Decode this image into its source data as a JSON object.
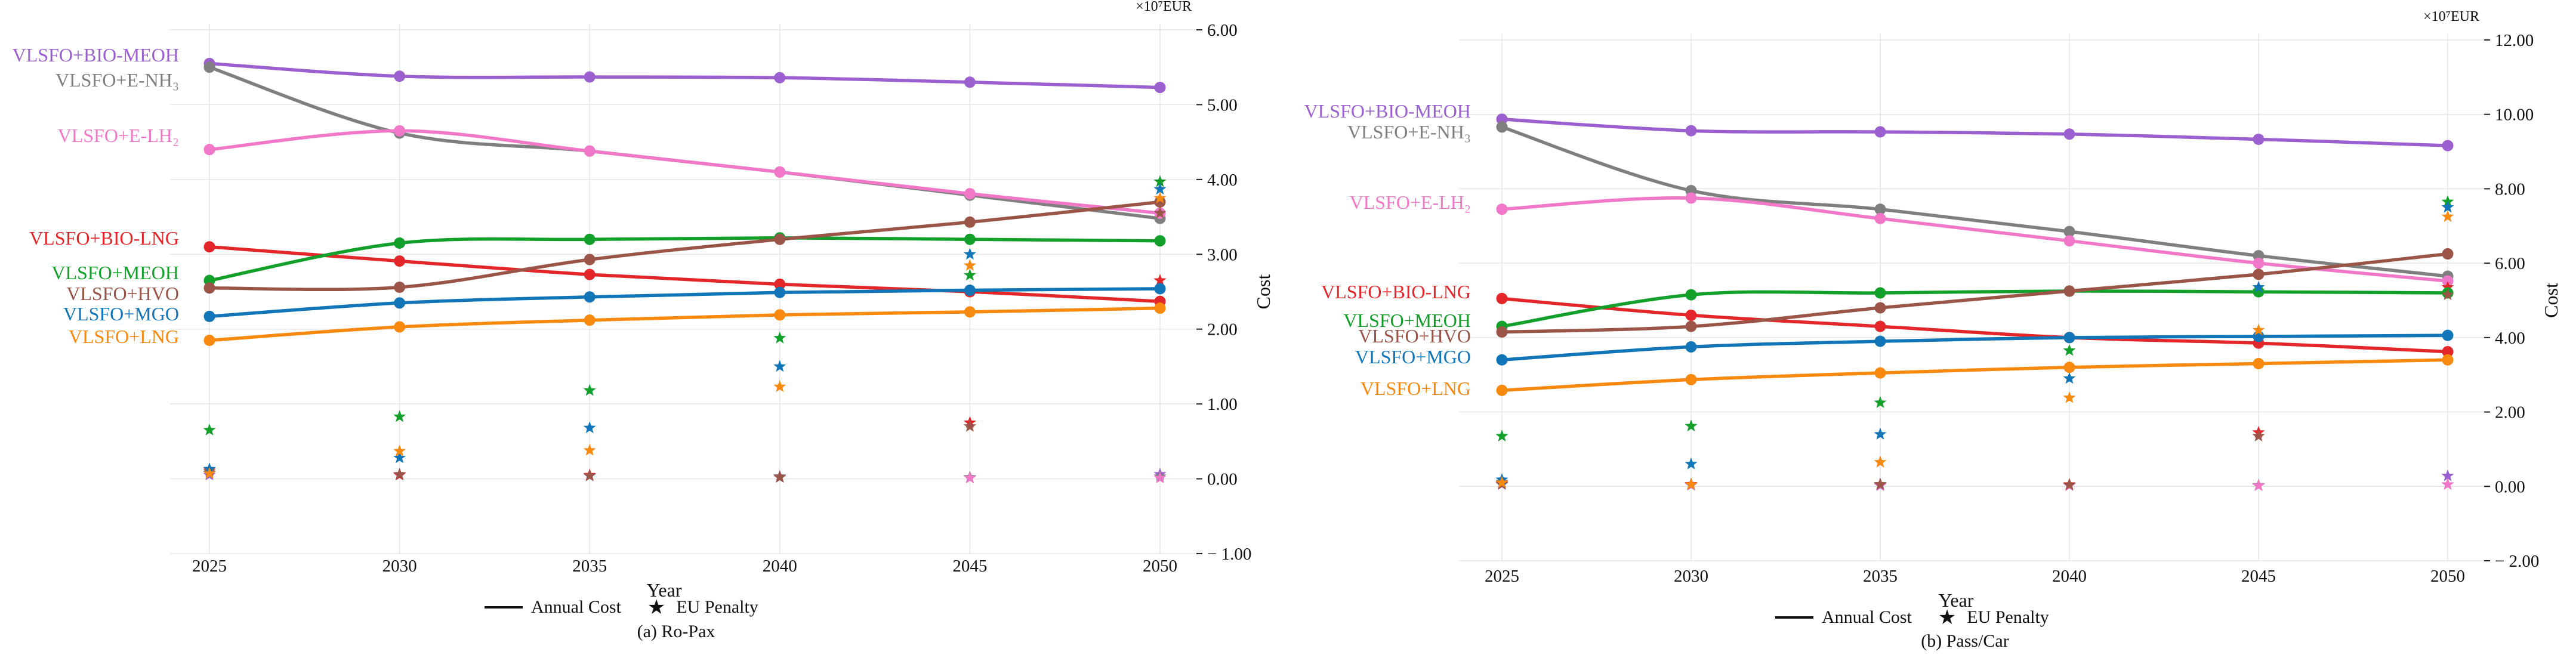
{
  "legend": {
    "annual_cost": "Annual Cost",
    "eu_penalty": "EU Penalty"
  },
  "colors": {
    "VLSFO+BIO-MEOH": "#9b5fcf",
    "VLSFO+E-NH3": "#7f7f7f",
    "VLSFO+E-LH2": "#f178c8",
    "VLSFO+BIO-LNG": "#e3262a",
    "VLSFO+MEOH": "#12a02a",
    "VLSFO+HVO": "#9a5548",
    "VLSFO+MGO": "#1175b8",
    "VLSFO+LNG": "#f7890f"
  },
  "chart_data": [
    {
      "type": "line",
      "caption": "(a) Ro-Pax",
      "xlabel": "Year",
      "ylabel": "Cost",
      "unit_label": "×10⁷EUR",
      "x": [
        2025,
        2030,
        2035,
        2040,
        2045,
        2050
      ],
      "x_tick_labels": [
        "2025",
        "2030",
        "2035",
        "2040",
        "2045",
        "2050"
      ],
      "ylim": [
        -1.0,
        6.0
      ],
      "y_ticks": [
        -1.0,
        0.0,
        1.0,
        2.0,
        3.0,
        4.0,
        5.0,
        6.0
      ],
      "y_tick_labels": [
        "− 1.00",
        "0.00",
        "1.00",
        "2.00",
        "3.00",
        "4.00",
        "5.00",
        "6.00"
      ],
      "grid": true,
      "series": [
        {
          "name": "VLSFO+BIO-MEOH",
          "label": "VLSFO+BIO-MEOH",
          "annual_cost": [
            5.55,
            5.38,
            5.37,
            5.36,
            5.3,
            5.23
          ],
          "eu_penalty": [
            0.05,
            0.05,
            0.04,
            0.03,
            0.02,
            0.06
          ]
        },
        {
          "name": "VLSFO+E-NH3",
          "label": "VLSFO+E-NH₃",
          "annual_cost": [
            5.5,
            4.62,
            4.38,
            4.1,
            3.79,
            3.48
          ],
          "eu_penalty": [
            0.08,
            0.05,
            0.04,
            0.03,
            0.02,
            0.03
          ]
        },
        {
          "name": "VLSFO+E-LH2",
          "label": "VLSFO+E-LH₂",
          "annual_cost": [
            4.4,
            4.65,
            4.38,
            4.1,
            3.81,
            3.55
          ],
          "eu_penalty": [
            0.1,
            0.06,
            0.04,
            0.02,
            0.01,
            0.01
          ]
        },
        {
          "name": "VLSFO+BIO-LNG",
          "label": "VLSFO+BIO-LNG",
          "annual_cost": [
            3.1,
            2.91,
            2.73,
            2.6,
            2.5,
            2.37
          ],
          "eu_penalty": [
            0.12,
            0.05,
            0.05,
            0.02,
            0.75,
            2.65
          ]
        },
        {
          "name": "VLSFO+MEOH",
          "label": "VLSFO+MEOH",
          "annual_cost": [
            2.65,
            3.15,
            3.2,
            3.22,
            3.2,
            3.18
          ],
          "eu_penalty": [
            0.65,
            0.83,
            1.18,
            1.88,
            2.72,
            3.97
          ]
        },
        {
          "name": "VLSFO+HVO",
          "label": "VLSFO+HVO",
          "annual_cost": [
            2.55,
            2.56,
            2.93,
            3.2,
            3.43,
            3.7
          ],
          "eu_penalty": [
            0.1,
            0.06,
            0.04,
            0.02,
            0.7,
            3.55
          ]
        },
        {
          "name": "VLSFO+MGO",
          "label": "VLSFO+MGO",
          "annual_cost": [
            2.17,
            2.35,
            2.43,
            2.49,
            2.52,
            2.54
          ],
          "eu_penalty": [
            0.13,
            0.28,
            0.68,
            1.5,
            3.0,
            3.87
          ]
        },
        {
          "name": "VLSFO+LNG",
          "label": "VLSFO+LNG",
          "annual_cost": [
            1.85,
            2.03,
            2.12,
            2.19,
            2.23,
            2.28
          ],
          "eu_penalty": [
            0.07,
            0.37,
            0.38,
            1.23,
            2.85,
            3.75
          ]
        }
      ]
    },
    {
      "type": "line",
      "caption": "(b) Pass/Car",
      "xlabel": "Year",
      "ylabel": "Cost",
      "unit_label": "×10⁷EUR",
      "x": [
        2025,
        2030,
        2035,
        2040,
        2045,
        2050
      ],
      "x_tick_labels": [
        "2025",
        "2030",
        "2035",
        "2040",
        "2045",
        "2050"
      ],
      "ylim": [
        -2.0,
        12.0
      ],
      "y_ticks": [
        -2.0,
        0.0,
        2.0,
        4.0,
        6.0,
        8.0,
        10.0,
        12.0
      ],
      "y_tick_labels": [
        "− 2.00",
        "0.00",
        "2.00",
        "4.00",
        "6.00",
        "8.00",
        "10.00",
        "12.00"
      ],
      "grid": true,
      "series": [
        {
          "name": "VLSFO+BIO-MEOH",
          "label": "VLSFO+BIO-MEOH",
          "annual_cost": [
            9.87,
            9.56,
            9.53,
            9.47,
            9.33,
            9.16
          ],
          "eu_penalty": [
            0.05,
            0.03,
            0.02,
            0.02,
            0.02,
            0.28
          ]
        },
        {
          "name": "VLSFO+E-NH3",
          "label": "VLSFO+E-NH₃",
          "annual_cost": [
            9.66,
            7.95,
            7.45,
            6.85,
            6.2,
            5.65
          ],
          "eu_penalty": [
            0.12,
            0.05,
            0.06,
            0.05,
            0.03,
            0.05
          ]
        },
        {
          "name": "VLSFO+E-LH2",
          "label": "VLSFO+E-LH₂",
          "annual_cost": [
            7.45,
            7.75,
            7.2,
            6.6,
            6.0,
            5.52
          ],
          "eu_penalty": [
            0.1,
            0.04,
            0.03,
            0.02,
            0.02,
            0.05
          ]
        },
        {
          "name": "VLSFO+BIO-LNG",
          "label": "VLSFO+BIO-LNG",
          "annual_cost": [
            5.05,
            4.6,
            4.3,
            4.0,
            3.85,
            3.62
          ],
          "eu_penalty": [
            0.08,
            0.06,
            0.05,
            0.05,
            1.45,
            5.35
          ]
        },
        {
          "name": "VLSFO+MEOH",
          "label": "VLSFO+MEOH",
          "annual_cost": [
            4.3,
            5.15,
            5.2,
            5.25,
            5.23,
            5.2
          ],
          "eu_penalty": [
            1.35,
            1.62,
            2.25,
            3.65,
            5.25,
            7.65
          ]
        },
        {
          "name": "VLSFO+HVO",
          "label": "VLSFO+HVO",
          "annual_cost": [
            4.15,
            4.3,
            4.8,
            5.25,
            5.7,
            6.25
          ],
          "eu_penalty": [
            0.06,
            0.05,
            0.05,
            0.04,
            1.35,
            5.15
          ]
        },
        {
          "name": "VLSFO+MGO",
          "label": "VLSFO+MGO",
          "annual_cost": [
            3.4,
            3.75,
            3.9,
            4.0,
            4.03,
            4.06
          ],
          "eu_penalty": [
            0.18,
            0.6,
            1.4,
            2.9,
            5.35,
            7.5
          ]
        },
        {
          "name": "VLSFO+LNG",
          "label": "VLSFO+LNG",
          "annual_cost": [
            2.58,
            2.87,
            3.05,
            3.2,
            3.3,
            3.4
          ],
          "eu_penalty": [
            0.1,
            0.05,
            0.65,
            2.38,
            4.2,
            7.25
          ]
        }
      ]
    }
  ]
}
